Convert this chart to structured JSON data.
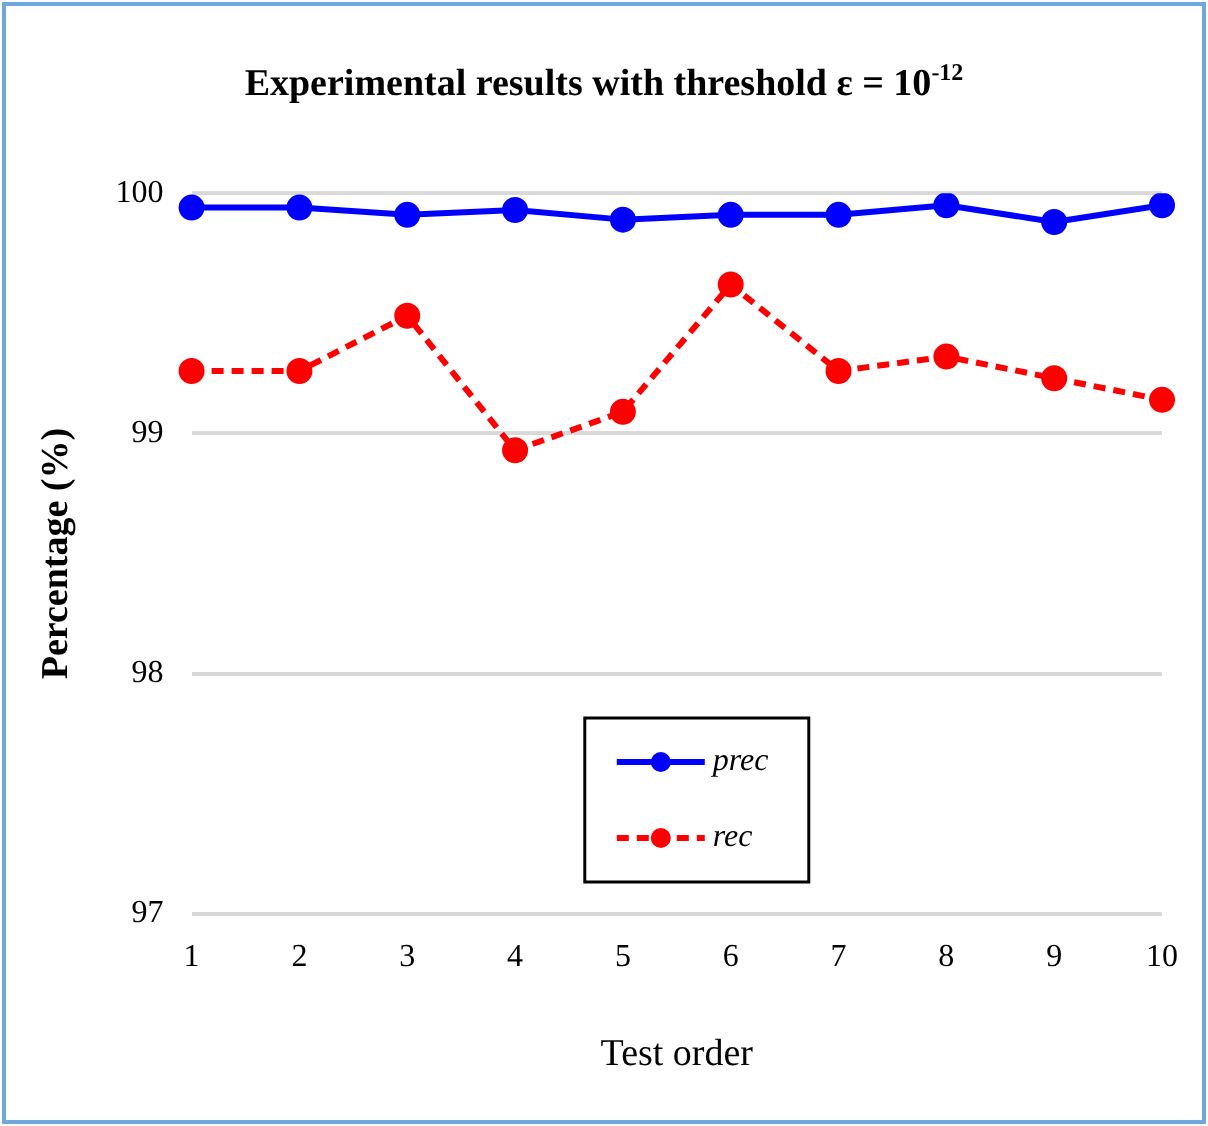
{
  "chart_data": {
    "type": "line",
    "title": "Experimental results with threshold ε = 10$^{-12}$",
    "xlabel": "Test order",
    "ylabel": "Percentage (%)",
    "categories": [
      "1",
      "2",
      "3",
      "4",
      "5",
      "6",
      "7",
      "8",
      "9",
      "10"
    ],
    "series": [
      {
        "name": "prec",
        "color": "#0000ff",
        "line_style": "solid",
        "values": [
          99.94,
          99.94,
          99.91,
          99.93,
          99.89,
          99.91,
          99.91,
          99.95,
          99.88,
          99.95
        ]
      },
      {
        "name": "rec",
        "color": "#ff0000",
        "line_style": "dashed",
        "values": [
          99.26,
          99.26,
          99.49,
          98.93,
          99.09,
          99.62,
          99.26,
          99.32,
          99.23,
          99.14
        ]
      }
    ],
    "ylim": [
      97,
      100
    ],
    "yticks": [
      97,
      98,
      99,
      100
    ],
    "grid": "y",
    "legend": "bottom",
    "marker": "circle"
  }
}
